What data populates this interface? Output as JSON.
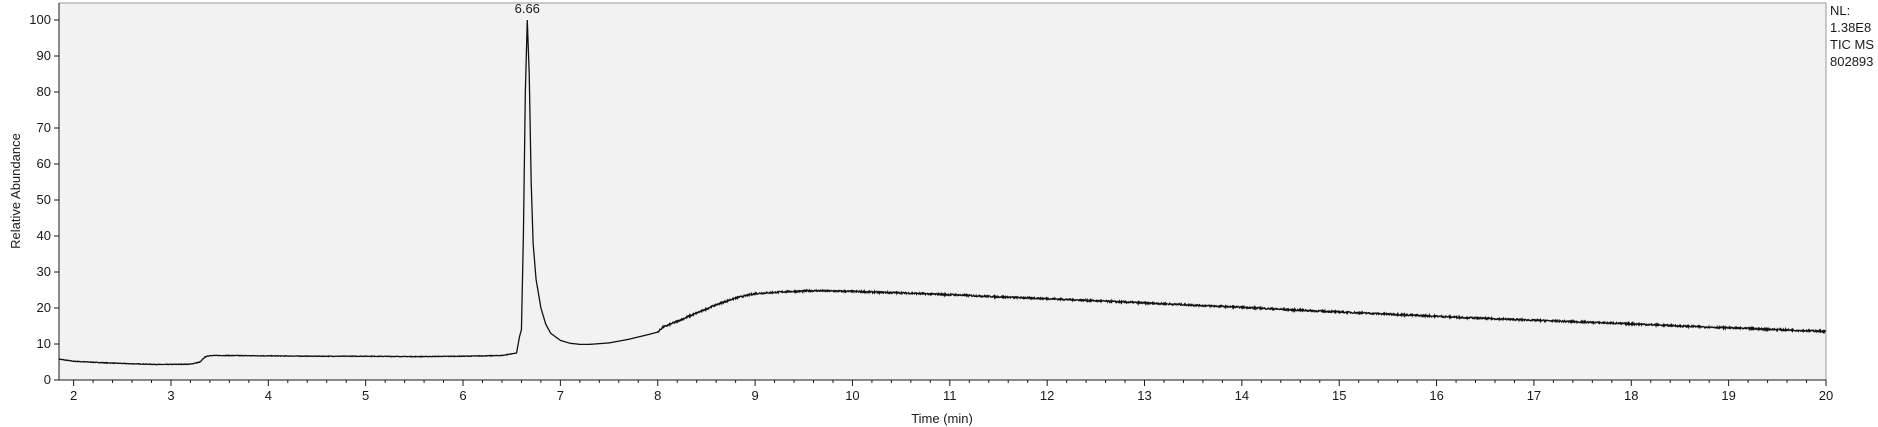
{
  "chart_data": {
    "type": "line",
    "xlabel": "Time (min)",
    "ylabel": "Relative Abundance",
    "xlim": [
      1.85,
      20.0
    ],
    "ylim": [
      0,
      100
    ],
    "x_ticks": [
      2,
      3,
      4,
      5,
      6,
      7,
      8,
      9,
      10,
      11,
      12,
      13,
      14,
      15,
      16,
      17,
      18,
      19,
      20
    ],
    "y_ticks": [
      0,
      10,
      20,
      30,
      40,
      50,
      60,
      70,
      80,
      90,
      100
    ],
    "grid": false,
    "annotations": [
      {
        "x": 6.66,
        "y": 100,
        "text": "6.66"
      }
    ],
    "series": [
      {
        "x": [
          1.85,
          2.0,
          2.3,
          2.6,
          2.9,
          3.2,
          3.3,
          3.35,
          3.4,
          3.6,
          4.0,
          4.5,
          5.0,
          5.5,
          6.0,
          6.4,
          6.55,
          6.58,
          6.6,
          6.62,
          6.64,
          6.66,
          6.68,
          6.7,
          6.72,
          6.75,
          6.8,
          6.85,
          6.9,
          7.0,
          7.1,
          7.2,
          7.3,
          7.5,
          7.7,
          7.9,
          8.0,
          8.05,
          8.2,
          8.4,
          8.6,
          8.8,
          9.0,
          9.3,
          9.6,
          10.0,
          10.5,
          11.0,
          11.5,
          12.0,
          12.5,
          13.0,
          13.5,
          14.0,
          14.5,
          15.0,
          15.5,
          16.0,
          16.5,
          17.0,
          17.5,
          18.0,
          18.5,
          19.0,
          19.5,
          20.0
        ],
        "y": [
          5.8,
          5.2,
          4.8,
          4.5,
          4.3,
          4.4,
          5.0,
          6.4,
          6.8,
          6.8,
          6.7,
          6.6,
          6.6,
          6.5,
          6.6,
          6.8,
          7.5,
          12,
          14,
          40,
          80,
          100,
          85,
          55,
          38,
          28,
          20,
          15.5,
          13,
          11,
          10.2,
          9.9,
          9.9,
          10.3,
          11.3,
          12.6,
          13.3,
          14.6,
          16.3,
          18.6,
          20.9,
          22.8,
          24.0,
          24.5,
          24.8,
          24.6,
          24.2,
          23.7,
          23.1,
          22.6,
          22.0,
          21.4,
          20.8,
          20.2,
          19.5,
          18.9,
          18.3,
          17.7,
          17.1,
          16.6,
          16.1,
          15.6,
          15.0,
          14.5,
          14.0,
          13.5
        ]
      }
    ]
  },
  "side_info": {
    "nl_label": "NL:",
    "nl_value": "1.38E8",
    "trace": "TIC  MS",
    "file": "802893"
  }
}
